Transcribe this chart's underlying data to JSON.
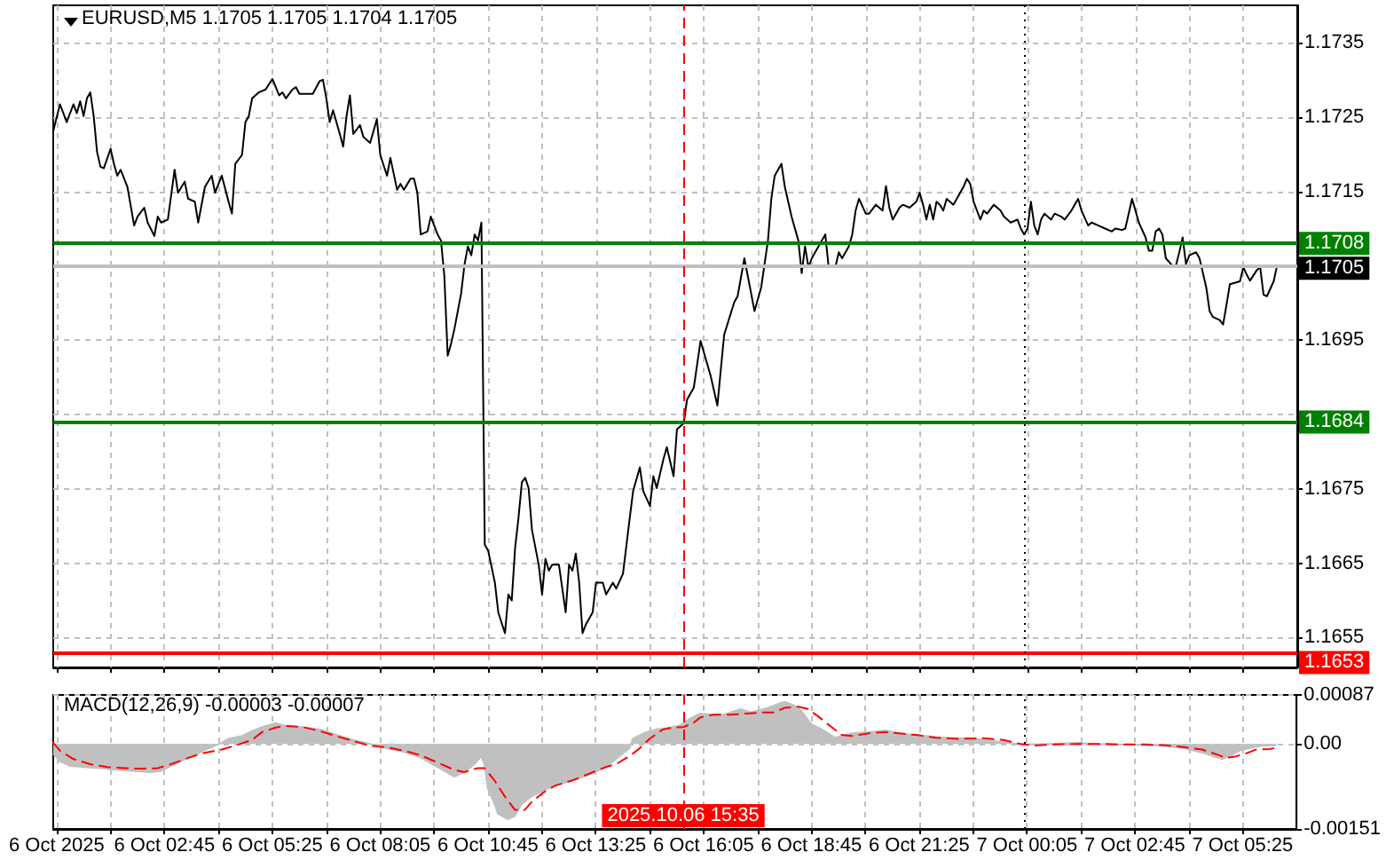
{
  "chart_data": [
    {
      "type": "line",
      "title": "EURUSD,M5 1.1705 1.1705 1.1704 1.1705",
      "color": "#000000",
      "x": [
        "2025-10-06T00:00",
        "2025-10-06T00:10",
        "2025-10-06T00:20",
        "2025-10-06T00:30",
        "2025-10-06T00:35",
        "2025-10-06T00:40",
        "2025-10-06T00:45",
        "2025-10-06T00:50",
        "2025-10-06T00:55",
        "2025-10-06T01:00",
        "2025-10-06T01:05",
        "2025-10-06T01:10",
        "2025-10-06T01:15",
        "2025-10-06T01:25",
        "2025-10-06T01:30",
        "2025-10-06T01:35",
        "2025-10-06T01:40",
        "2025-10-06T01:50",
        "2025-10-06T02:00",
        "2025-10-06T02:05",
        "2025-10-06T02:15",
        "2025-10-06T02:20",
        "2025-10-06T02:30",
        "2025-10-06T02:35",
        "2025-10-06T02:40",
        "2025-10-06T02:50",
        "2025-10-06T03:00",
        "2025-10-06T03:05",
        "2025-10-06T03:15",
        "2025-10-06T03:20",
        "2025-10-06T03:30",
        "2025-10-06T03:35",
        "2025-10-06T03:45",
        "2025-10-06T03:55",
        "2025-10-06T04:00",
        "2025-10-06T04:10",
        "2025-10-06T04:20",
        "2025-10-06T04:25",
        "2025-10-06T04:30",
        "2025-10-06T04:40",
        "2025-10-06T04:45",
        "2025-10-06T04:50",
        "2025-10-06T04:55",
        "2025-10-06T05:05",
        "2025-10-06T05:15",
        "2025-10-06T05:25",
        "2025-10-06T05:35",
        "2025-10-06T05:40",
        "2025-10-06T05:45",
        "2025-10-06T05:55",
        "2025-10-06T06:00",
        "2025-10-06T06:05",
        "2025-10-06T06:25",
        "2025-10-06T06:35",
        "2025-10-06T06:40",
        "2025-10-06T06:45",
        "2025-10-06T06:50",
        "2025-10-06T06:55",
        "2025-10-06T07:05",
        "2025-10-06T07:10",
        "2025-10-06T07:15",
        "2025-10-06T07:20",
        "2025-10-06T07:25",
        "2025-10-06T07:35",
        "2025-10-06T07:40",
        "2025-10-06T07:50",
        "2025-10-06T08:00",
        "2025-10-06T08:05",
        "2025-10-06T08:15",
        "2025-10-06T08:20",
        "2025-10-06T08:30",
        "2025-10-06T08:35",
        "2025-10-06T08:40",
        "2025-10-06T08:50",
        "2025-10-06T08:55",
        "2025-10-06T09:00",
        "2025-10-06T09:05",
        "2025-10-06T09:15",
        "2025-10-06T09:20",
        "2025-10-06T09:30",
        "2025-10-06T09:35",
        "2025-10-06T09:40",
        "2025-10-06T09:45",
        "2025-10-06T09:50",
        "2025-10-06T09:55",
        "2025-10-06T10:05",
        "2025-10-06T10:10",
        "2025-10-06T10:15",
        "2025-10-06T10:20",
        "2025-10-06T10:25",
        "2025-10-06T10:30",
        "2025-10-06T10:35",
        "2025-10-06T10:40",
        "2025-10-06T10:45",
        "2025-10-06T10:55",
        "2025-10-06T11:00",
        "2025-10-06T11:10",
        "2025-10-06T11:15",
        "2025-10-06T11:20",
        "2025-10-06T11:25",
        "2025-10-06T11:30",
        "2025-10-06T11:35",
        "2025-10-06T11:40",
        "2025-10-06T11:45",
        "2025-10-06T11:50",
        "2025-10-06T12:00",
        "2025-10-06T12:05",
        "2025-10-06T12:10",
        "2025-10-06T12:15",
        "2025-10-06T12:20",
        "2025-10-06T12:30",
        "2025-10-06T12:40",
        "2025-10-06T12:45",
        "2025-10-06T12:50",
        "2025-10-06T12:55",
        "2025-10-06T13:00",
        "2025-10-06T13:05",
        "2025-10-06T13:10",
        "2025-10-06T13:20",
        "2025-10-06T13:25",
        "2025-10-06T13:35",
        "2025-10-06T13:40",
        "2025-10-06T13:50",
        "2025-10-06T13:55",
        "2025-10-06T14:05",
        "2025-10-06T14:15",
        "2025-10-06T14:20",
        "2025-10-06T14:30",
        "2025-10-06T14:35",
        "2025-10-06T14:45",
        "2025-10-06T14:50",
        "2025-10-06T14:55",
        "2025-10-06T15:05",
        "2025-10-06T15:10",
        "2025-10-06T15:20",
        "2025-10-06T15:25",
        "2025-10-06T15:35",
        "2025-10-06T15:40",
        "2025-10-06T15:50",
        "2025-10-06T16:00",
        "2025-10-06T16:15",
        "2025-10-06T16:25",
        "2025-10-06T16:35",
        "2025-10-06T16:50",
        "2025-10-06T16:55",
        "2025-10-06T17:05",
        "2025-10-06T17:15",
        "2025-10-06T17:20",
        "2025-10-06T17:30",
        "2025-10-06T17:40",
        "2025-10-06T17:45",
        "2025-10-06T17:50",
        "2025-10-06T18:00",
        "2025-10-06T18:05",
        "2025-10-06T18:15",
        "2025-10-06T18:25",
        "2025-10-06T18:30",
        "2025-10-06T18:35",
        "2025-10-06T18:40",
        "2025-10-06T18:45",
        "2025-10-06T18:55",
        "2025-10-06T19:00",
        "2025-10-06T19:05",
        "2025-10-06T19:10",
        "2025-10-06T19:20",
        "2025-10-06T19:25",
        "2025-10-06T19:30",
        "2025-10-06T19:40",
        "2025-10-06T19:45",
        "2025-10-06T19:50",
        "2025-10-06T19:55",
        "2025-10-06T20:05",
        "2025-10-06T20:10",
        "2025-10-06T20:20",
        "2025-10-06T20:30",
        "2025-10-06T20:35",
        "2025-10-06T20:40",
        "2025-10-06T20:45",
        "2025-10-06T20:55",
        "2025-10-06T21:00",
        "2025-10-06T21:10",
        "2025-10-06T21:20",
        "2025-10-06T21:25",
        "2025-10-06T21:30",
        "2025-10-06T21:35",
        "2025-10-06T21:40",
        "2025-10-06T21:45",
        "2025-10-06T21:50",
        "2025-10-06T21:55",
        "2025-10-06T22:00",
        "2025-10-06T22:05",
        "2025-10-06T22:15",
        "2025-10-06T22:20",
        "2025-10-06T22:30",
        "2025-10-06T22:35",
        "2025-10-06T22:40",
        "2025-10-06T22:45",
        "2025-10-06T22:55",
        "2025-10-06T23:00",
        "2025-10-06T23:05",
        "2025-10-06T23:15",
        "2025-10-06T23:25",
        "2025-10-06T23:30",
        "2025-10-06T23:40",
        "2025-10-06T23:50",
        "2025-10-06T23:55",
        "2025-10-07T00:00",
        "2025-10-07T00:05",
        "2025-10-07T00:10",
        "2025-10-07T00:15",
        "2025-10-07T00:20",
        "2025-10-07T00:25",
        "2025-10-07T00:30",
        "2025-10-07T00:40",
        "2025-10-07T00:45",
        "2025-10-07T00:55",
        "2025-10-07T01:00",
        "2025-10-07T01:10",
        "2025-10-07T01:20",
        "2025-10-07T01:25",
        "2025-10-07T01:35",
        "2025-10-07T01:40",
        "2025-10-07T01:50",
        "2025-10-07T02:00",
        "2025-10-07T02:10",
        "2025-10-07T02:15",
        "2025-10-07T02:25",
        "2025-10-07T02:30",
        "2025-10-07T02:40",
        "2025-10-07T02:45",
        "2025-10-07T02:50",
        "2025-10-07T03:00",
        "2025-10-07T03:05",
        "2025-10-07T03:10",
        "2025-10-07T03:15",
        "2025-10-07T03:20",
        "2025-10-07T03:25",
        "2025-10-07T03:30",
        "2025-10-07T03:40",
        "2025-10-07T03:45",
        "2025-10-07T03:50",
        "2025-10-07T03:55",
        "2025-10-07T04:00",
        "2025-10-07T04:05",
        "2025-10-07T04:15",
        "2025-10-07T04:20",
        "2025-10-07T04:30",
        "2025-10-07T04:35",
        "2025-10-07T04:40",
        "2025-10-07T04:50",
        "2025-10-07T04:55",
        "2025-10-07T05:00",
        "2025-10-07T05:05",
        "2025-10-07T05:20",
        "2025-10-07T05:25",
        "2025-10-07T05:30",
        "2025-10-07T05:35",
        "2025-10-07T05:45",
        "2025-10-07T05:50",
        "2025-10-07T05:55",
        "2025-10-07T06:00",
        "2025-10-07T06:10",
        "2025-10-07T06:15"
      ],
      "values": [
        1.17231,
        1.17267,
        1.17243,
        1.17267,
        1.17255,
        1.17271,
        1.17251,
        1.17275,
        1.17283,
        1.17251,
        1.17203,
        1.17183,
        1.17181,
        1.17207,
        1.17187,
        1.17171,
        1.17179,
        1.17156,
        1.17104,
        1.17116,
        1.17128,
        1.17108,
        1.1709,
        1.17116,
        1.17108,
        1.17112,
        1.17179,
        1.17148,
        1.17163,
        1.1714,
        1.17136,
        1.17108,
        1.17156,
        1.17171,
        1.17148,
        1.17171,
        1.17136,
        1.1712,
        1.17187,
        1.17199,
        1.17243,
        1.17251,
        1.17275,
        1.17283,
        1.17287,
        1.17301,
        1.17279,
        1.17283,
        1.17275,
        1.17287,
        1.1729,
        1.17281,
        1.17281,
        1.17298,
        1.173,
        1.17275,
        1.17243,
        1.17259,
        1.17227,
        1.1721,
        1.17251,
        1.17279,
        1.17227,
        1.17239,
        1.17223,
        1.17215,
        1.17247,
        1.17199,
        1.17171,
        1.17195,
        1.17152,
        1.1716,
        1.17152,
        1.17167,
        1.17167,
        1.17148,
        1.17092,
        1.17096,
        1.17116,
        1.17092,
        1.17084,
        1.17037,
        1.16929,
        1.16945,
        1.16965,
        1.17013,
        1.17052,
        1.17076,
        1.17064,
        1.17092,
        1.17084,
        1.17108,
        1.16675,
        1.16667,
        1.16624,
        1.16584,
        1.16556,
        1.16608,
        1.166,
        1.16671,
        1.16711,
        1.16759,
        1.16765,
        1.16751,
        1.16695,
        1.16648,
        1.16608,
        1.16656,
        1.1664,
        1.16648,
        1.16648,
        1.16584,
        1.16648,
        1.1664,
        1.16663,
        1.16624,
        1.16556,
        1.16568,
        1.16584,
        1.16624,
        1.16624,
        1.16608,
        1.16624,
        1.16616,
        1.16636,
        1.16711,
        1.16747,
        1.16779,
        1.16747,
        1.16727,
        1.16767,
        1.16751,
        1.1679,
        1.16806,
        1.16767,
        1.1683,
        1.16838,
        1.1687,
        1.16886,
        1.16949,
        1.16902,
        1.16862,
        1.16957,
        1.17001,
        1.17009,
        1.1706,
        1.17013,
        1.16989,
        1.17021,
        1.17084,
        1.1714,
        1.17171,
        1.17187,
        1.17156,
        1.17116,
        1.17084,
        1.1704,
        1.17076,
        1.17048,
        1.1706,
        1.17076,
        1.17084,
        1.17092,
        1.17048,
        1.17048,
        1.17068,
        1.1706,
        1.17076,
        1.17092,
        1.17124,
        1.1714,
        1.1712,
        1.1712,
        1.17132,
        1.17124,
        1.17157,
        1.17128,
        1.17112,
        1.17128,
        1.17132,
        1.17128,
        1.17136,
        1.17148,
        1.17132,
        1.17112,
        1.17132,
        1.17112,
        1.17136,
        1.17132,
        1.17124,
        1.1714,
        1.17132,
        1.1714,
        1.17156,
        1.17167,
        1.1716,
        1.17136,
        1.17112,
        1.17124,
        1.1712,
        1.17132,
        1.17124,
        1.17116,
        1.17108,
        1.17112,
        1.171,
        1.17092,
        1.171,
        1.17136,
        1.17104,
        1.17092,
        1.17112,
        1.1712,
        1.17112,
        1.1712,
        1.17116,
        1.17112,
        1.17124,
        1.1714,
        1.17124,
        1.17104,
        1.17108,
        1.17104,
        1.171,
        1.17096,
        1.171,
        1.17098,
        1.171,
        1.1714,
        1.17124,
        1.17108,
        1.17088,
        1.1707,
        1.1707,
        1.17096,
        1.171,
        1.17092,
        1.1706,
        1.1705,
        1.1705,
        1.17068,
        1.17088,
        1.17052,
        1.17064,
        1.17068,
        1.1706,
        1.17021,
        1.16989,
        1.16981,
        1.16977,
        1.16971,
        1.16997,
        1.17025,
        1.17029,
        1.17048,
        1.17038,
        1.1703,
        1.17044,
        1.17048,
        1.17011,
        1.17009,
        1.17029,
        1.1705
      ],
      "xlim": [
        "2025-10-06T00:00",
        "2025-10-07T06:45"
      ],
      "xticks": [
        {
          "value": "2025-10-06T00:05",
          "label": null
        },
        {
          "value": "2025-10-06T01:25",
          "label": null
        },
        {
          "value": "2025-10-06T02:45",
          "label": null
        },
        {
          "value": "2025-10-06T04:05",
          "label": null
        },
        {
          "value": "2025-10-06T05:25",
          "label": null
        },
        {
          "value": "2025-10-06T06:45",
          "label": null
        },
        {
          "value": "2025-10-06T08:05",
          "label": null
        },
        {
          "value": "2025-10-06T09:25",
          "label": null
        },
        {
          "value": "2025-10-06T10:45",
          "label": null
        },
        {
          "value": "2025-10-06T12:05",
          "label": null
        },
        {
          "value": "2025-10-06T13:25",
          "label": null
        },
        {
          "value": "2025-10-06T14:45",
          "label": null
        },
        {
          "value": "2025-10-06T16:05",
          "label": null
        },
        {
          "value": "2025-10-06T17:25",
          "label": null
        },
        {
          "value": "2025-10-06T18:45",
          "label": null
        },
        {
          "value": "2025-10-06T20:05",
          "label": null
        },
        {
          "value": "2025-10-06T21:25",
          "label": null
        },
        {
          "value": "2025-10-06T22:45",
          "label": null
        },
        {
          "value": "2025-10-07T00:05",
          "label": null
        },
        {
          "value": "2025-10-07T01:25",
          "label": null
        },
        {
          "value": "2025-10-07T02:45",
          "label": null
        },
        {
          "value": "2025-10-07T04:05",
          "label": null
        },
        {
          "value": "2025-10-07T05:25",
          "label": null
        }
      ],
      "ylim": [
        1.1651,
        1.174
      ],
      "yticks": [
        1.1655,
        1.1665,
        1.1675,
        {
          "value": 1.1685,
          "label": null
        },
        1.1695,
        {
          "value": 1.1705,
          "label": null
        },
        1.1715,
        1.1725,
        1.1735
      ],
      "grid": true,
      "tick_labels": "y",
      "ref_lines": [
        {
          "axis": "y",
          "value": 1.1708,
          "label": "1.1708",
          "color": "#008000"
        },
        {
          "axis": "y",
          "value": 1.1684,
          "label": "1.1684",
          "color": "#008000"
        },
        {
          "axis": "y",
          "value": 1.1653,
          "label": "1.1653",
          "color": "#ff0000"
        },
        {
          "axis": "y",
          "value": 1.1705,
          "label": "1.1705",
          "color": "#c0c0c0"
        },
        {
          "axis": "x",
          "value": "2025-10-06T15:35",
          "color": "#ff0000",
          "line_style": "dashed"
        },
        {
          "axis": "x",
          "value": "2025-10-07T00:00",
          "color": "#000000",
          "line_style": "dotted"
        }
      ]
    },
    {
      "type": "area",
      "title": "MACD(12,26,9) -0.00003 -0.00007",
      "series": [
        {
          "type": "area",
          "color": "#c0c0c0",
          "x": [
            "2025-10-06T00:00",
            "2025-10-06T00:10",
            "2025-10-06T00:25",
            "2025-10-06T00:45",
            "2025-10-06T01:10",
            "2025-10-06T01:35",
            "2025-10-06T02:00",
            "2025-10-06T02:25",
            "2025-10-06T02:40",
            "2025-10-06T03:00",
            "2025-10-06T03:25",
            "2025-10-06T03:50",
            "2025-10-06T04:10",
            "2025-10-06T04:20",
            "2025-10-06T04:40",
            "2025-10-06T04:55",
            "2025-10-06T05:10",
            "2025-10-06T05:30",
            "2025-10-06T05:45",
            "2025-10-06T06:10",
            "2025-10-06T06:35",
            "2025-10-06T07:00",
            "2025-10-06T07:25",
            "2025-10-06T07:50",
            "2025-10-06T08:15",
            "2025-10-06T08:40",
            "2025-10-06T09:05",
            "2025-10-06T09:30",
            "2025-10-06T09:55",
            "2025-10-06T10:10",
            "2025-10-06T10:25",
            "2025-10-06T10:35",
            "2025-10-06T10:40",
            "2025-10-06T10:45",
            "2025-10-06T10:55",
            "2025-10-06T11:00",
            "2025-10-06T11:15",
            "2025-10-06T11:25",
            "2025-10-06T11:35",
            "2025-10-06T11:50",
            "2025-10-06T12:10",
            "2025-10-06T12:25",
            "2025-10-06T12:50",
            "2025-10-06T13:15",
            "2025-10-06T13:40",
            "2025-10-06T13:55",
            "2025-10-06T14:15",
            "2025-10-06T14:20",
            "2025-10-06T14:40",
            "2025-10-06T14:55",
            "2025-10-06T15:10",
            "2025-10-06T15:30",
            "2025-10-06T15:45",
            "2025-10-06T16:00",
            "2025-10-06T16:20",
            "2025-10-06T16:35",
            "2025-10-06T17:00",
            "2025-10-06T17:15",
            "2025-10-06T17:40",
            "2025-10-06T18:00",
            "2025-10-06T18:05",
            "2025-10-06T18:20",
            "2025-10-06T18:30",
            "2025-10-06T18:45",
            "2025-10-06T19:00",
            "2025-10-06T19:20",
            "2025-10-06T19:45",
            "2025-10-06T20:10",
            "2025-10-06T20:35",
            "2025-10-06T21:00",
            "2025-10-06T21:35",
            "2025-10-06T22:10",
            "2025-10-06T22:40",
            "2025-10-06T23:15",
            "2025-10-06T23:50",
            "2025-10-07T00:05",
            "2025-10-07T00:40",
            "2025-10-07T01:20",
            "2025-10-07T01:45",
            "2025-10-07T02:20",
            "2025-10-07T02:50",
            "2025-10-07T03:25",
            "2025-10-07T04:00",
            "2025-10-07T04:30",
            "2025-10-07T04:55",
            "2025-10-07T05:05",
            "2025-10-07T05:20",
            "2025-10-07T05:40",
            "2025-10-07T05:55",
            "2025-10-07T06:15"
          ],
          "values": [
            -0.00017,
            -0.00031,
            -0.00039,
            -0.00041,
            -0.00043,
            -0.00046,
            -0.00048,
            -0.0005,
            -0.00048,
            -0.00036,
            -0.00022,
            -8e-05,
            2e-05,
            9e-05,
            0.00014,
            0.00023,
            0.0003,
            0.00037,
            0.00032,
            0.0003,
            0.00026,
            0.00016,
            7e-05,
            0,
            -8e-05,
            -0.00014,
            -0.00024,
            -0.00041,
            -0.00058,
            -0.0005,
            -0.00036,
            -0.00022,
            -0.00036,
            -0.00079,
            -0.00107,
            -0.00124,
            -0.00134,
            -0.00128,
            -0.00107,
            -0.00093,
            -0.00081,
            -0.00074,
            -0.00065,
            -0.00055,
            -0.00041,
            -0.00027,
            -8e-05,
            9e-05,
            0.00021,
            0.00026,
            0.00028,
            0.00033,
            0.00045,
            0.00054,
            0.00052,
            0.00052,
            0.00062,
            0.00056,
            0.00064,
            0.00073,
            0.00075,
            0.00068,
            0.00059,
            0.00035,
            0.00026,
            0.00011,
            0.00019,
            0.00021,
            0.00024,
            0.00018,
            0.00014,
            0.0001,
            0.0001,
            5e-05,
            0,
            -1e-05,
            0,
            2e-05,
            0,
            -1e-05,
            -2e-05,
            -3e-05,
            -8e-05,
            -0.00017,
            -0.00027,
            -0.00022,
            -0.00012,
            -6e-05,
            -3e-05,
            -3e-05
          ]
        },
        {
          "type": "line",
          "color": "#ff0000",
          "line_style": "dashed",
          "x": [
            "2025-10-06T00:00",
            "2025-10-06T00:10",
            "2025-10-06T00:30",
            "2025-10-06T00:55",
            "2025-10-06T01:20",
            "2025-10-06T01:45",
            "2025-10-06T02:10",
            "2025-10-06T02:35",
            "2025-10-06T02:55",
            "2025-10-06T03:15",
            "2025-10-06T03:40",
            "2025-10-06T04:10",
            "2025-10-06T04:30",
            "2025-10-06T04:55",
            "2025-10-06T05:10",
            "2025-10-06T05:30",
            "2025-10-06T05:45",
            "2025-10-06T06:10",
            "2025-10-06T06:35",
            "2025-10-06T07:00",
            "2025-10-06T07:25",
            "2025-10-06T07:50",
            "2025-10-06T08:15",
            "2025-10-06T08:40",
            "2025-10-06T09:05",
            "2025-10-06T09:30",
            "2025-10-06T09:55",
            "2025-10-06T10:10",
            "2025-10-06T10:30",
            "2025-10-06T10:40",
            "2025-10-06T10:55",
            "2025-10-06T11:10",
            "2025-10-06T11:25",
            "2025-10-06T11:40",
            "2025-10-06T11:50",
            "2025-10-06T12:10",
            "2025-10-06T12:25",
            "2025-10-06T12:50",
            "2025-10-06T13:15",
            "2025-10-06T13:40",
            "2025-10-06T13:55",
            "2025-10-06T14:15",
            "2025-10-06T14:30",
            "2025-10-06T14:45",
            "2025-10-06T15:05",
            "2025-10-06T15:20",
            "2025-10-06T15:35",
            "2025-10-06T15:50",
            "2025-10-06T16:00",
            "2025-10-06T16:20",
            "2025-10-06T16:45",
            "2025-10-06T17:10",
            "2025-10-06T17:35",
            "2025-10-06T17:50",
            "2025-10-06T18:05",
            "2025-10-06T18:25",
            "2025-10-06T18:40",
            "2025-10-06T18:55",
            "2025-10-06T19:15",
            "2025-10-06T19:30",
            "2025-10-06T19:45",
            "2025-10-06T20:10",
            "2025-10-06T20:35",
            "2025-10-06T21:20",
            "2025-10-06T21:50",
            "2025-10-06T22:25",
            "2025-10-06T23:00",
            "2025-10-06T23:30",
            "2025-10-06T23:55",
            "2025-10-07T00:15",
            "2025-10-07T00:45",
            "2025-10-07T01:20",
            "2025-10-07T01:55",
            "2025-10-07T02:25",
            "2025-10-07T03:00",
            "2025-10-07T03:35",
            "2025-10-07T04:00",
            "2025-10-07T04:25",
            "2025-10-07T04:50",
            "2025-10-07T05:00",
            "2025-10-07T05:15",
            "2025-10-07T05:30",
            "2025-10-07T05:45",
            "2025-10-07T06:05",
            "2025-10-07T06:15"
          ],
          "values": [
            2e-05,
            -0.00012,
            -0.00027,
            -0.00036,
            -0.00041,
            -0.00043,
            -0.00044,
            -0.00043,
            -0.00036,
            -0.00027,
            -0.00017,
            -0.0001,
            -3e-05,
            7e-05,
            0.00021,
            0.00029,
            0.00032,
            0.0003,
            0.00023,
            0.00014,
            5e-05,
            -3e-05,
            -6e-05,
            -0.00012,
            -0.0002,
            -0.00033,
            -0.00046,
            -0.0005,
            -0.00043,
            -0.00043,
            -0.00065,
            -0.00093,
            -0.00117,
            -0.00117,
            -0.00103,
            -0.00084,
            -0.00074,
            -0.00065,
            -0.00053,
            -0.00041,
            -0.00036,
            -0.00022,
            -8e-05,
            9e-05,
            0.00026,
            0.00029,
            0.0003,
            0.00037,
            0.00047,
            0.00052,
            0.00052,
            0.00054,
            0.00056,
            0.00056,
            0.00064,
            0.00066,
            0.00062,
            0.00049,
            0.0003,
            0.00016,
            0.00014,
            0.00019,
            0.00021,
            0.00016,
            0.00011,
            9e-05,
            0.0001,
            7e-05,
            0,
            -3e-05,
            -1e-05,
            0,
            0,
            -1e-05,
            -1e-05,
            -3e-05,
            -6e-05,
            -0.0001,
            -0.0002,
            -0.00025,
            -0.00022,
            -0.00017,
            -0.0001,
            -9e-05,
            -7e-05
          ]
        }
      ],
      "xlim": [
        "2025-10-06T00:00",
        "2025-10-07T06:45"
      ],
      "xticks": [
        {
          "value": "2025-10-06T00:05",
          "label": "6 Oct 2025"
        },
        {
          "value": "2025-10-06T01:25",
          "label": null
        },
        {
          "value": "2025-10-06T02:45",
          "label": "6 Oct 02:45"
        },
        {
          "value": "2025-10-06T04:05",
          "label": null
        },
        {
          "value": "2025-10-06T05:25",
          "label": "6 Oct 05:25"
        },
        {
          "value": "2025-10-06T06:45",
          "label": null
        },
        {
          "value": "2025-10-06T08:05",
          "label": "6 Oct 08:05"
        },
        {
          "value": "2025-10-06T09:25",
          "label": null
        },
        {
          "value": "2025-10-06T10:45",
          "label": "6 Oct 10:45"
        },
        {
          "value": "2025-10-06T12:05",
          "label": null
        },
        {
          "value": "2025-10-06T13:25",
          "label": "6 Oct 13:25"
        },
        {
          "value": "2025-10-06T14:45",
          "label": null
        },
        {
          "value": "2025-10-06T16:05",
          "label": "6 Oct 16:05"
        },
        {
          "value": "2025-10-06T17:25",
          "label": null
        },
        {
          "value": "2025-10-06T18:45",
          "label": "6 Oct 18:45"
        },
        {
          "value": "2025-10-06T20:05",
          "label": null
        },
        {
          "value": "2025-10-06T21:25",
          "label": "6 Oct 21:25"
        },
        {
          "value": "2025-10-06T22:45",
          "label": null
        },
        {
          "value": "2025-10-07T00:05",
          "label": "7 Oct 00:05"
        },
        {
          "value": "2025-10-07T01:25",
          "label": null
        },
        {
          "value": "2025-10-07T02:45",
          "label": "7 Oct 02:45"
        },
        {
          "value": "2025-10-07T04:05",
          "label": null
        },
        {
          "value": "2025-10-07T05:25",
          "label": "7 Oct 05:25"
        }
      ],
      "ylim": [
        -0.00151,
        0.00087
      ],
      "yticks": [
        -0.00151,
        {
          "value": 0,
          "label": "0.00"
        },
        0.00087
      ],
      "grid": true,
      "ref_lines": [
        {
          "axis": "x",
          "value": "2025-10-06T15:35",
          "label": "2025.10.06 15:35",
          "color": "#ff0000",
          "line_style": "dashed"
        },
        {
          "axis": "x",
          "value": "2025-10-07T00:00",
          "color": "#000000",
          "line_style": "dotted"
        }
      ]
    }
  ]
}
